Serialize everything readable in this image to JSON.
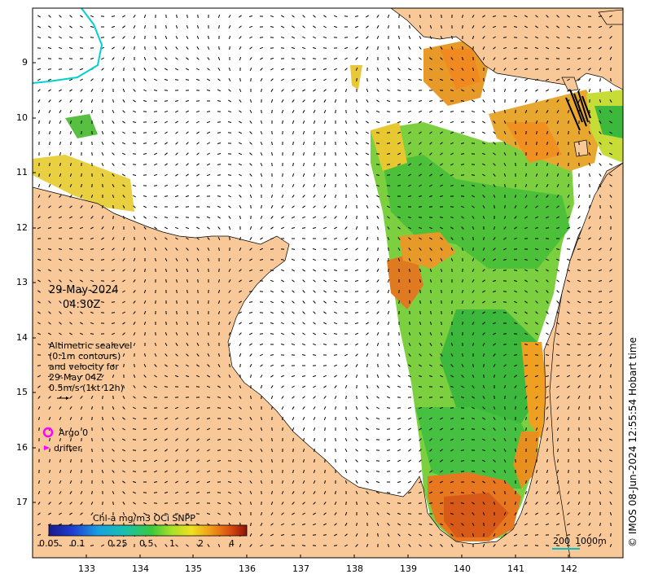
{
  "map": {
    "y_tick_labels": [
      "9",
      "10",
      "11",
      "12",
      "13",
      "14",
      "15",
      "16",
      "17"
    ],
    "x_tick_labels": [
      "133",
      "134",
      "135",
      "136",
      "137",
      "138",
      "139",
      "140",
      "141",
      "142"
    ],
    "colors": {
      "land": "#f8c898",
      "water": "#ffffff",
      "argo_ring": "#ff00ff",
      "drifter": "#ff00ff",
      "track_line": "#00d0d0",
      "scale_bar": "#00c0c0"
    }
  },
  "annotation": {
    "date": "29-May-2024",
    "time": "04:30Z",
    "note_lines": [
      "Altimetric sealevel",
      "(0.1m contours)",
      "and velocity for",
      "29-May 04Z",
      "0.5m/s (1kt 12h)"
    ]
  },
  "legend": {
    "argo": "Argo 0",
    "drifter": "drifter"
  },
  "colorbar": {
    "title": "Chl-a mg/m3 OCi SNPP",
    "ticks": [
      "0.05",
      "0.1",
      "0.25",
      "0.5",
      "1",
      "2",
      "4"
    ]
  },
  "scale_bar": {
    "label": "200",
    "label2": "1000m"
  },
  "credit": "© IMOS 08-Jun-2024 12:55:54 Hobart time"
}
